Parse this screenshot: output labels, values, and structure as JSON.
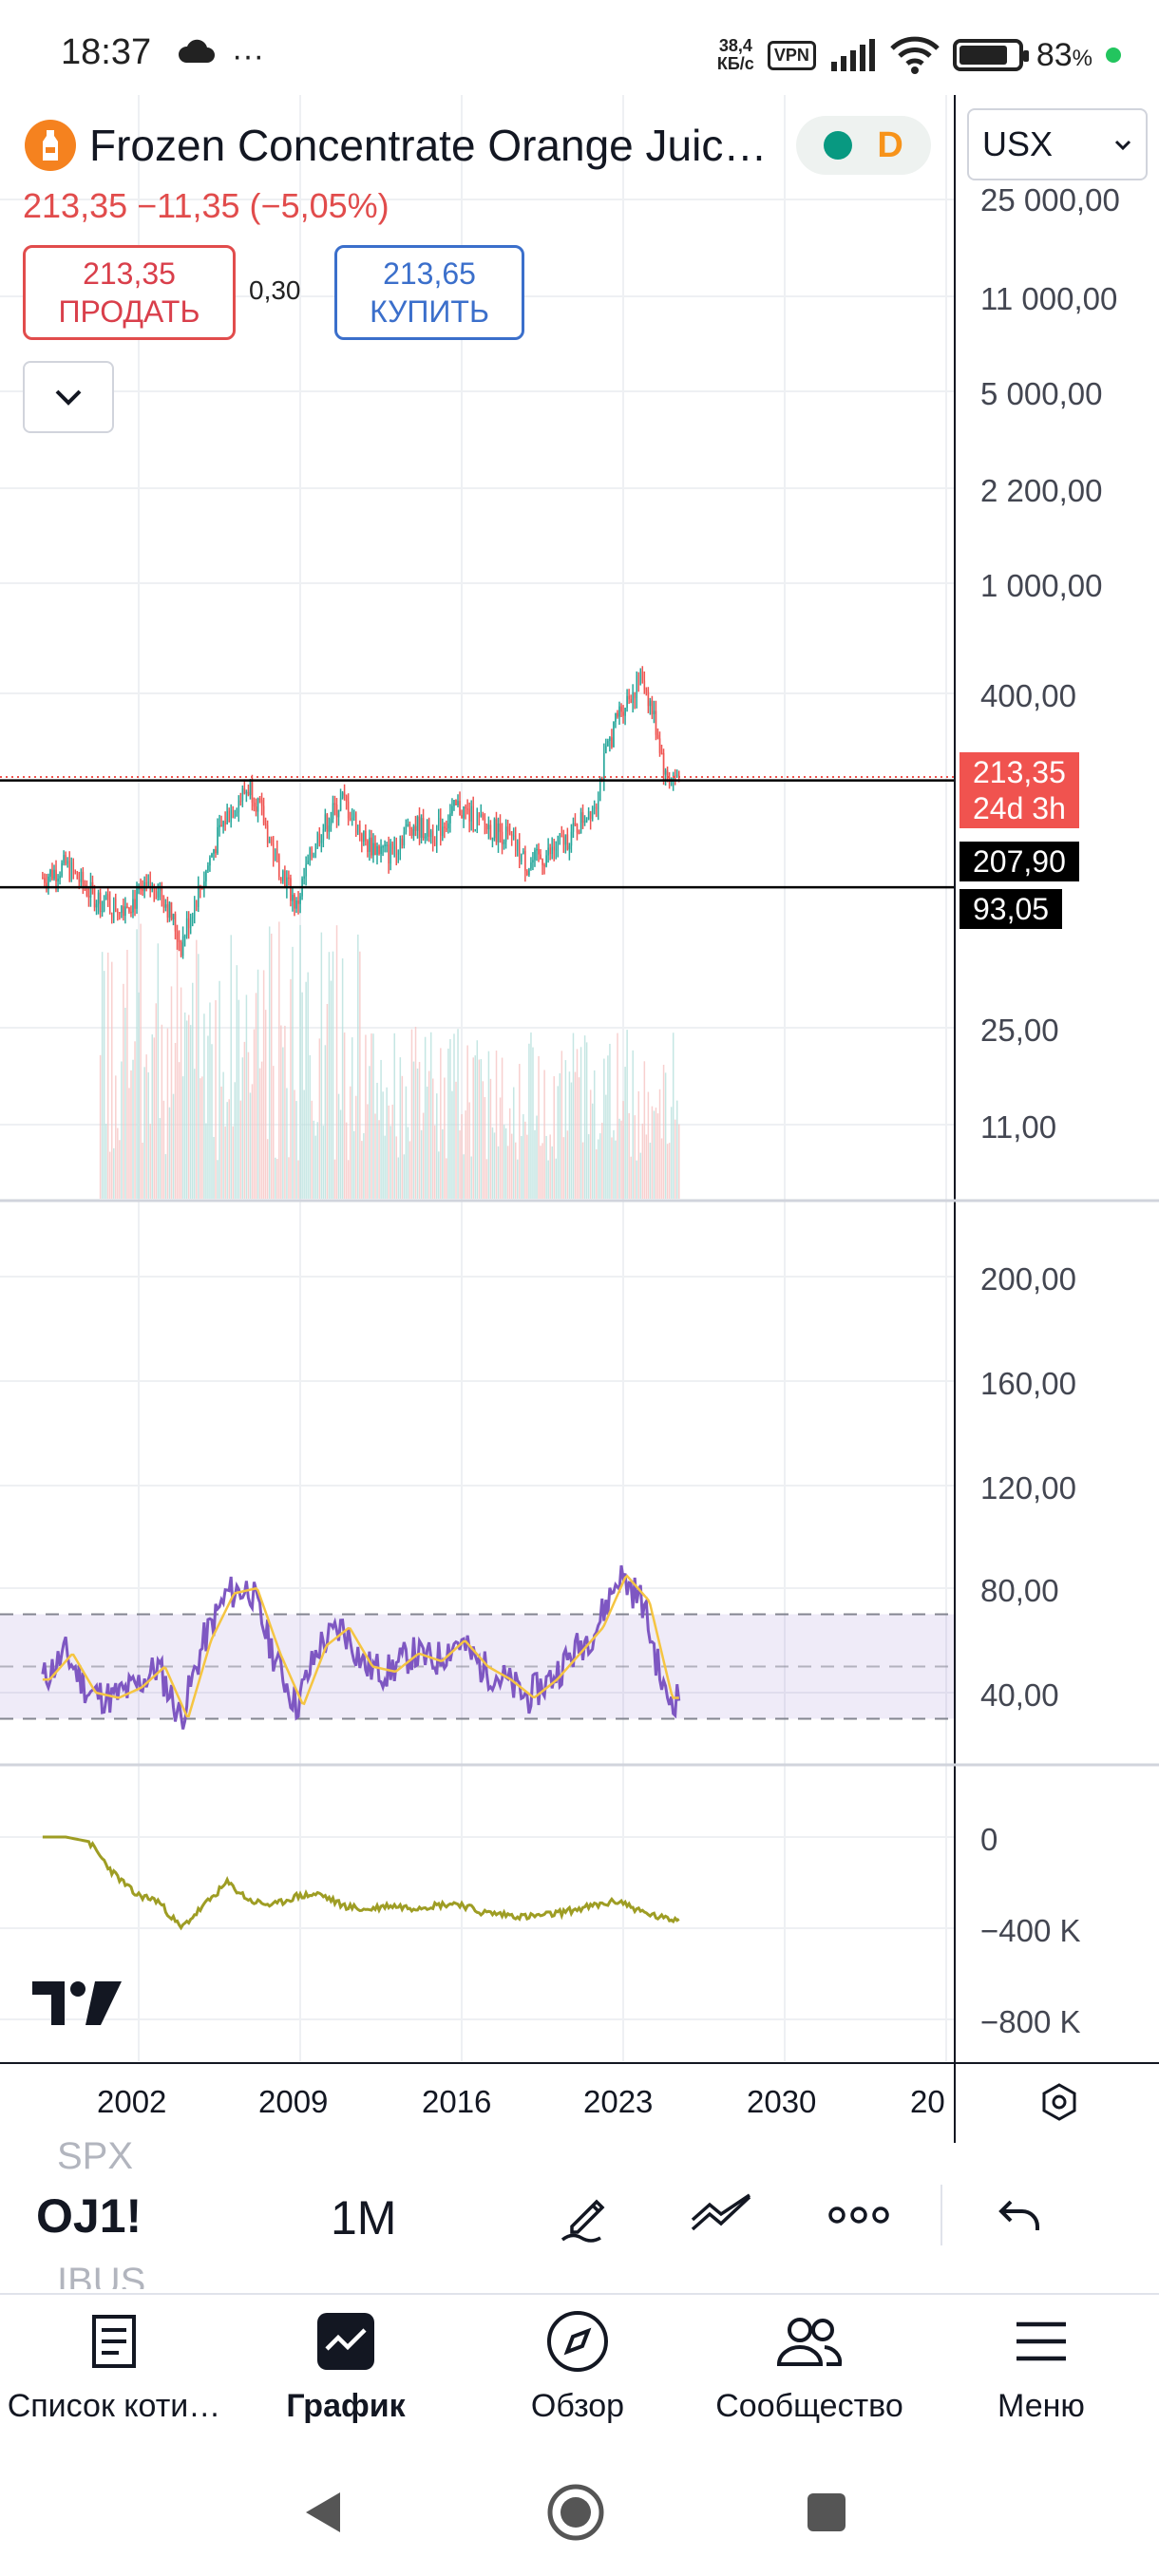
{
  "status_bar": {
    "time": "18:37",
    "net_speed_value": "38,4",
    "net_speed_unit": "КБ/с",
    "vpn": "VPN",
    "battery_percent": "83",
    "battery_unit": "%",
    "battery_level": 0.83
  },
  "symbol": {
    "title": "Frozen Concentrate Orange Juic…",
    "price_change": "213,35 −11,35 (−5,05%)",
    "market_status": "D",
    "currency": "USX"
  },
  "trade": {
    "sell_price": "213,35",
    "sell_label": "ПРОДАТЬ",
    "spread": "0,30",
    "buy_price": "213,65",
    "buy_label": "КУПИТЬ"
  },
  "price_axis": {
    "labels": [
      "25 000,00",
      "11 000,00",
      "5 000,00",
      "2 200,00",
      "1 000,00",
      "400,00",
      "25,00",
      "11,00"
    ],
    "last_price_tag": "213,35",
    "countdown_tag": "24d 3h",
    "hline_upper_tag": "207,90",
    "hline_lower_tag": "93,05"
  },
  "rsi_axis": {
    "labels": [
      "200,00",
      "160,00",
      "120,00",
      "80,00",
      "40,00"
    ]
  },
  "obv_axis": {
    "labels": [
      "0",
      "−400 K",
      "−800 K"
    ]
  },
  "time_axis": {
    "labels": [
      "2002",
      "2009",
      "2016",
      "2023",
      "2030",
      "20"
    ]
  },
  "chart_data": {
    "type": "candlestick",
    "timeframe": "1M",
    "y_scale": "log",
    "x": [
      1998,
      1999,
      2000,
      2001,
      2002,
      2003,
      2004,
      2005,
      2006,
      2007,
      2008,
      2009,
      2010,
      2011,
      2012,
      2013,
      2014,
      2015,
      2016,
      2017,
      2018,
      2019,
      2020,
      2021,
      2022,
      2023,
      2024,
      2025
    ],
    "close": [
      100,
      110,
      90,
      80,
      85,
      95,
      60,
      100,
      160,
      200,
      120,
      80,
      140,
      180,
      130,
      120,
      150,
      140,
      170,
      150,
      140,
      110,
      120,
      140,
      180,
      350,
      450,
      213.35
    ],
    "horizontal_lines": [
      207.9,
      93.05
    ],
    "rsi": [
      45,
      55,
      40,
      38,
      42,
      50,
      30,
      60,
      78,
      80,
      55,
      35,
      58,
      65,
      50,
      48,
      55,
      52,
      60,
      50,
      45,
      38,
      45,
      55,
      65,
      85,
      75,
      38
    ],
    "obv": [
      0,
      0,
      -20,
      -150,
      -250,
      -280,
      -400,
      -300,
      -200,
      -280,
      -300,
      -260,
      -250,
      -300,
      -320,
      -300,
      -310,
      -300,
      -290,
      -330,
      -340,
      -350,
      -340,
      -320,
      -300,
      -280,
      -330,
      -360
    ]
  },
  "toolbar": {
    "symbol": "OJ1!",
    "symbol_prev": "SPX",
    "symbol_next": "IBUS",
    "interval": "1M"
  },
  "bottom_nav": {
    "items": [
      "Список коти…",
      "График",
      "Обзор",
      "Сообщество",
      "Меню"
    ]
  }
}
